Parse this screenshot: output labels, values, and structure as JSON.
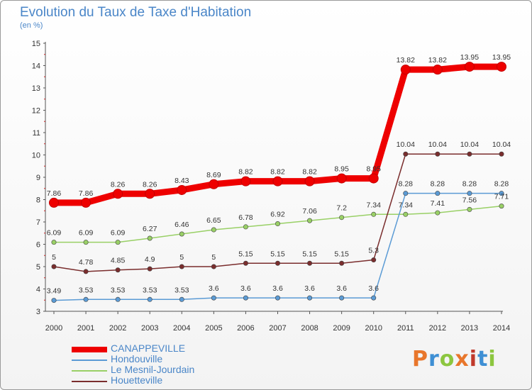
{
  "header": {
    "title": "Evolution du Taux de Taxe d'Habitation",
    "subtitle": "(en %)"
  },
  "brand": {
    "text": "Proxiti",
    "colors": [
      "#e8762b",
      "#3e8fd4",
      "#8cc63f",
      "#e8762b",
      "#c0392b",
      "#3e8fd4",
      "#8cc63f"
    ]
  },
  "chart_data": {
    "type": "line",
    "x": [
      2000,
      2001,
      2002,
      2003,
      2004,
      2005,
      2006,
      2007,
      2008,
      2009,
      2010,
      2011,
      2012,
      2013,
      2014
    ],
    "ylim": [
      3,
      15
    ],
    "yticks": [
      3,
      4,
      5,
      6,
      7,
      8,
      9,
      10,
      11,
      12,
      13,
      14,
      15
    ],
    "grid": false,
    "legend_position": "bottom-left",
    "series": [
      {
        "name": "CANAPPEVILLE",
        "color": "#ee0000",
        "width": 9,
        "values": [
          7.86,
          7.86,
          8.26,
          8.26,
          8.43,
          8.69,
          8.82,
          8.82,
          8.82,
          8.95,
          8.95,
          13.82,
          13.82,
          13.95,
          13.95
        ],
        "labels": [
          "7.86",
          "7.86",
          "8.26",
          "8.26",
          "8.43",
          "8.69",
          "8.82",
          "8.82",
          "8.82",
          "8.95",
          "8.95",
          "13.82",
          "13.82",
          "13.95",
          "13.95"
        ]
      },
      {
        "name": "Hondouville",
        "color": "#5b9bd5",
        "width": 1.5,
        "values": [
          3.49,
          3.53,
          3.53,
          3.53,
          3.53,
          3.6,
          3.6,
          3.6,
          3.6,
          3.6,
          3.6,
          8.28,
          8.28,
          8.28,
          8.28
        ],
        "labels": [
          "3.49",
          "3.53",
          "3.53",
          "3.53",
          "3.53",
          "3.6",
          "3.6",
          "3.6",
          "3.6",
          "3.6",
          "3.6",
          "8.28",
          "8.28",
          "8.28",
          "8.28"
        ]
      },
      {
        "name": "Le Mesnil-Jourdain",
        "color": "#99d066",
        "width": 1.5,
        "values": [
          6.09,
          6.09,
          6.09,
          6.27,
          6.46,
          6.65,
          6.78,
          6.92,
          7.06,
          7.2,
          7.34,
          7.34,
          7.41,
          7.56,
          7.71
        ],
        "labels": [
          "6.09",
          "6.09",
          "6.09",
          "6.27",
          "6.46",
          "6.65",
          "6.78",
          "6.92",
          "7.06",
          "7.2",
          "7.34",
          "7.34",
          "7.41",
          "7.56",
          "7.71"
        ]
      },
      {
        "name": "Houetteville",
        "color": "#7a2d2d",
        "width": 1.5,
        "values": [
          5,
          4.78,
          4.85,
          4.9,
          5,
          5,
          5.15,
          5.15,
          5.15,
          5.15,
          5.3,
          10.04,
          10.04,
          10.04,
          10.04
        ],
        "labels": [
          "5",
          "4.78",
          "4.85",
          "4.9",
          "5",
          "5",
          "5.15",
          "5.15",
          "5.15",
          "5.15",
          "5.3",
          "10.04",
          "10.04",
          "10.04",
          "10.04"
        ]
      }
    ]
  }
}
